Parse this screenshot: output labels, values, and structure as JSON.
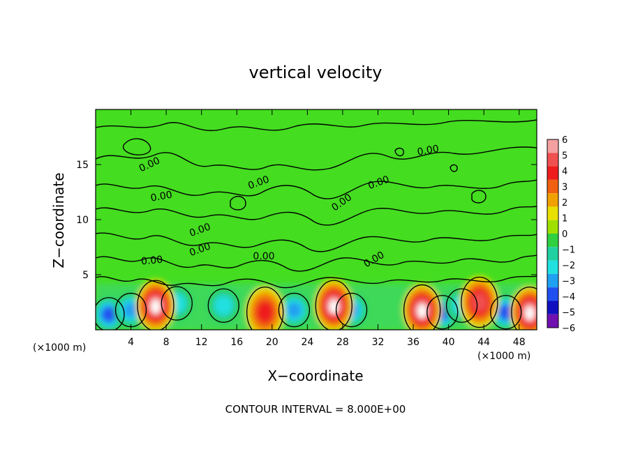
{
  "chart_data": {
    "type": "heatmap",
    "title": "vertical velocity",
    "xlabel": "X−coordinate",
    "ylabel": "Z−coordinate",
    "x_unit": "(×1000 m)",
    "x_unit_right": "(×1000 m)",
    "xlim": [
      0,
      50
    ],
    "ylim": [
      0,
      20
    ],
    "x_ticks": [
      4,
      8,
      12,
      16,
      20,
      24,
      28,
      32,
      36,
      40,
      44,
      48
    ],
    "x_tick_labels": [
      "4",
      "8",
      "12",
      "16",
      "20",
      "24",
      "28",
      "32",
      "36",
      "40",
      "44",
      "48"
    ],
    "y_ticks": [
      5,
      10,
      15
    ],
    "y_tick_labels": [
      "5",
      "10",
      "15"
    ],
    "colorbar": {
      "levels": [
        6,
        5,
        4,
        3,
        2,
        1,
        0,
        -1,
        -2,
        -3,
        -4,
        -5,
        -6
      ],
      "labels": [
        "6",
        "5",
        "4",
        "3",
        "2",
        "1",
        "0",
        "−1",
        "−2",
        "−3",
        "−4",
        "−5",
        "−6"
      ],
      "colors": [
        "#f5a0a0",
        "#f05050",
        "#ee1c1c",
        "#f06010",
        "#f0a000",
        "#e8e000",
        "#a0e000",
        "#30d040",
        "#20d0a0",
        "#20e0e0",
        "#20a0f0",
        "#2050f0",
        "#1010c0",
        "#7010b0"
      ]
    },
    "contour_label_text": "0.00",
    "contour_interval_text": "CONTOUR INTERVAL = 8.000E+00",
    "updrafts": [
      {
        "x": 6.8,
        "z": 2.2,
        "w": 6
      },
      {
        "x": 19.2,
        "z": 1.6,
        "w": 4
      },
      {
        "x": 27.0,
        "z": 2.2,
        "w": 6
      },
      {
        "x": 37.0,
        "z": 1.8,
        "w": 6
      },
      {
        "x": 43.5,
        "z": 2.5,
        "w": 5
      },
      {
        "x": 49.2,
        "z": 1.6,
        "w": 6
      }
    ],
    "downdrafts": [
      {
        "x": 1.5,
        "z": 1.4,
        "w": -5
      },
      {
        "x": 4.0,
        "z": 1.8,
        "w": -4
      },
      {
        "x": 9.2,
        "z": 2.4,
        "w": -3
      },
      {
        "x": 14.5,
        "z": 2.2,
        "w": -3
      },
      {
        "x": 22.5,
        "z": 1.8,
        "w": -4
      },
      {
        "x": 29.0,
        "z": 1.8,
        "w": -4
      },
      {
        "x": 39.3,
        "z": 1.6,
        "w": -5
      },
      {
        "x": 41.5,
        "z": 2.2,
        "w": -3
      },
      {
        "x": 46.5,
        "z": 1.6,
        "w": -5
      }
    ]
  },
  "colors": {
    "background_field": "#44dd20",
    "frame": "#000000"
  }
}
